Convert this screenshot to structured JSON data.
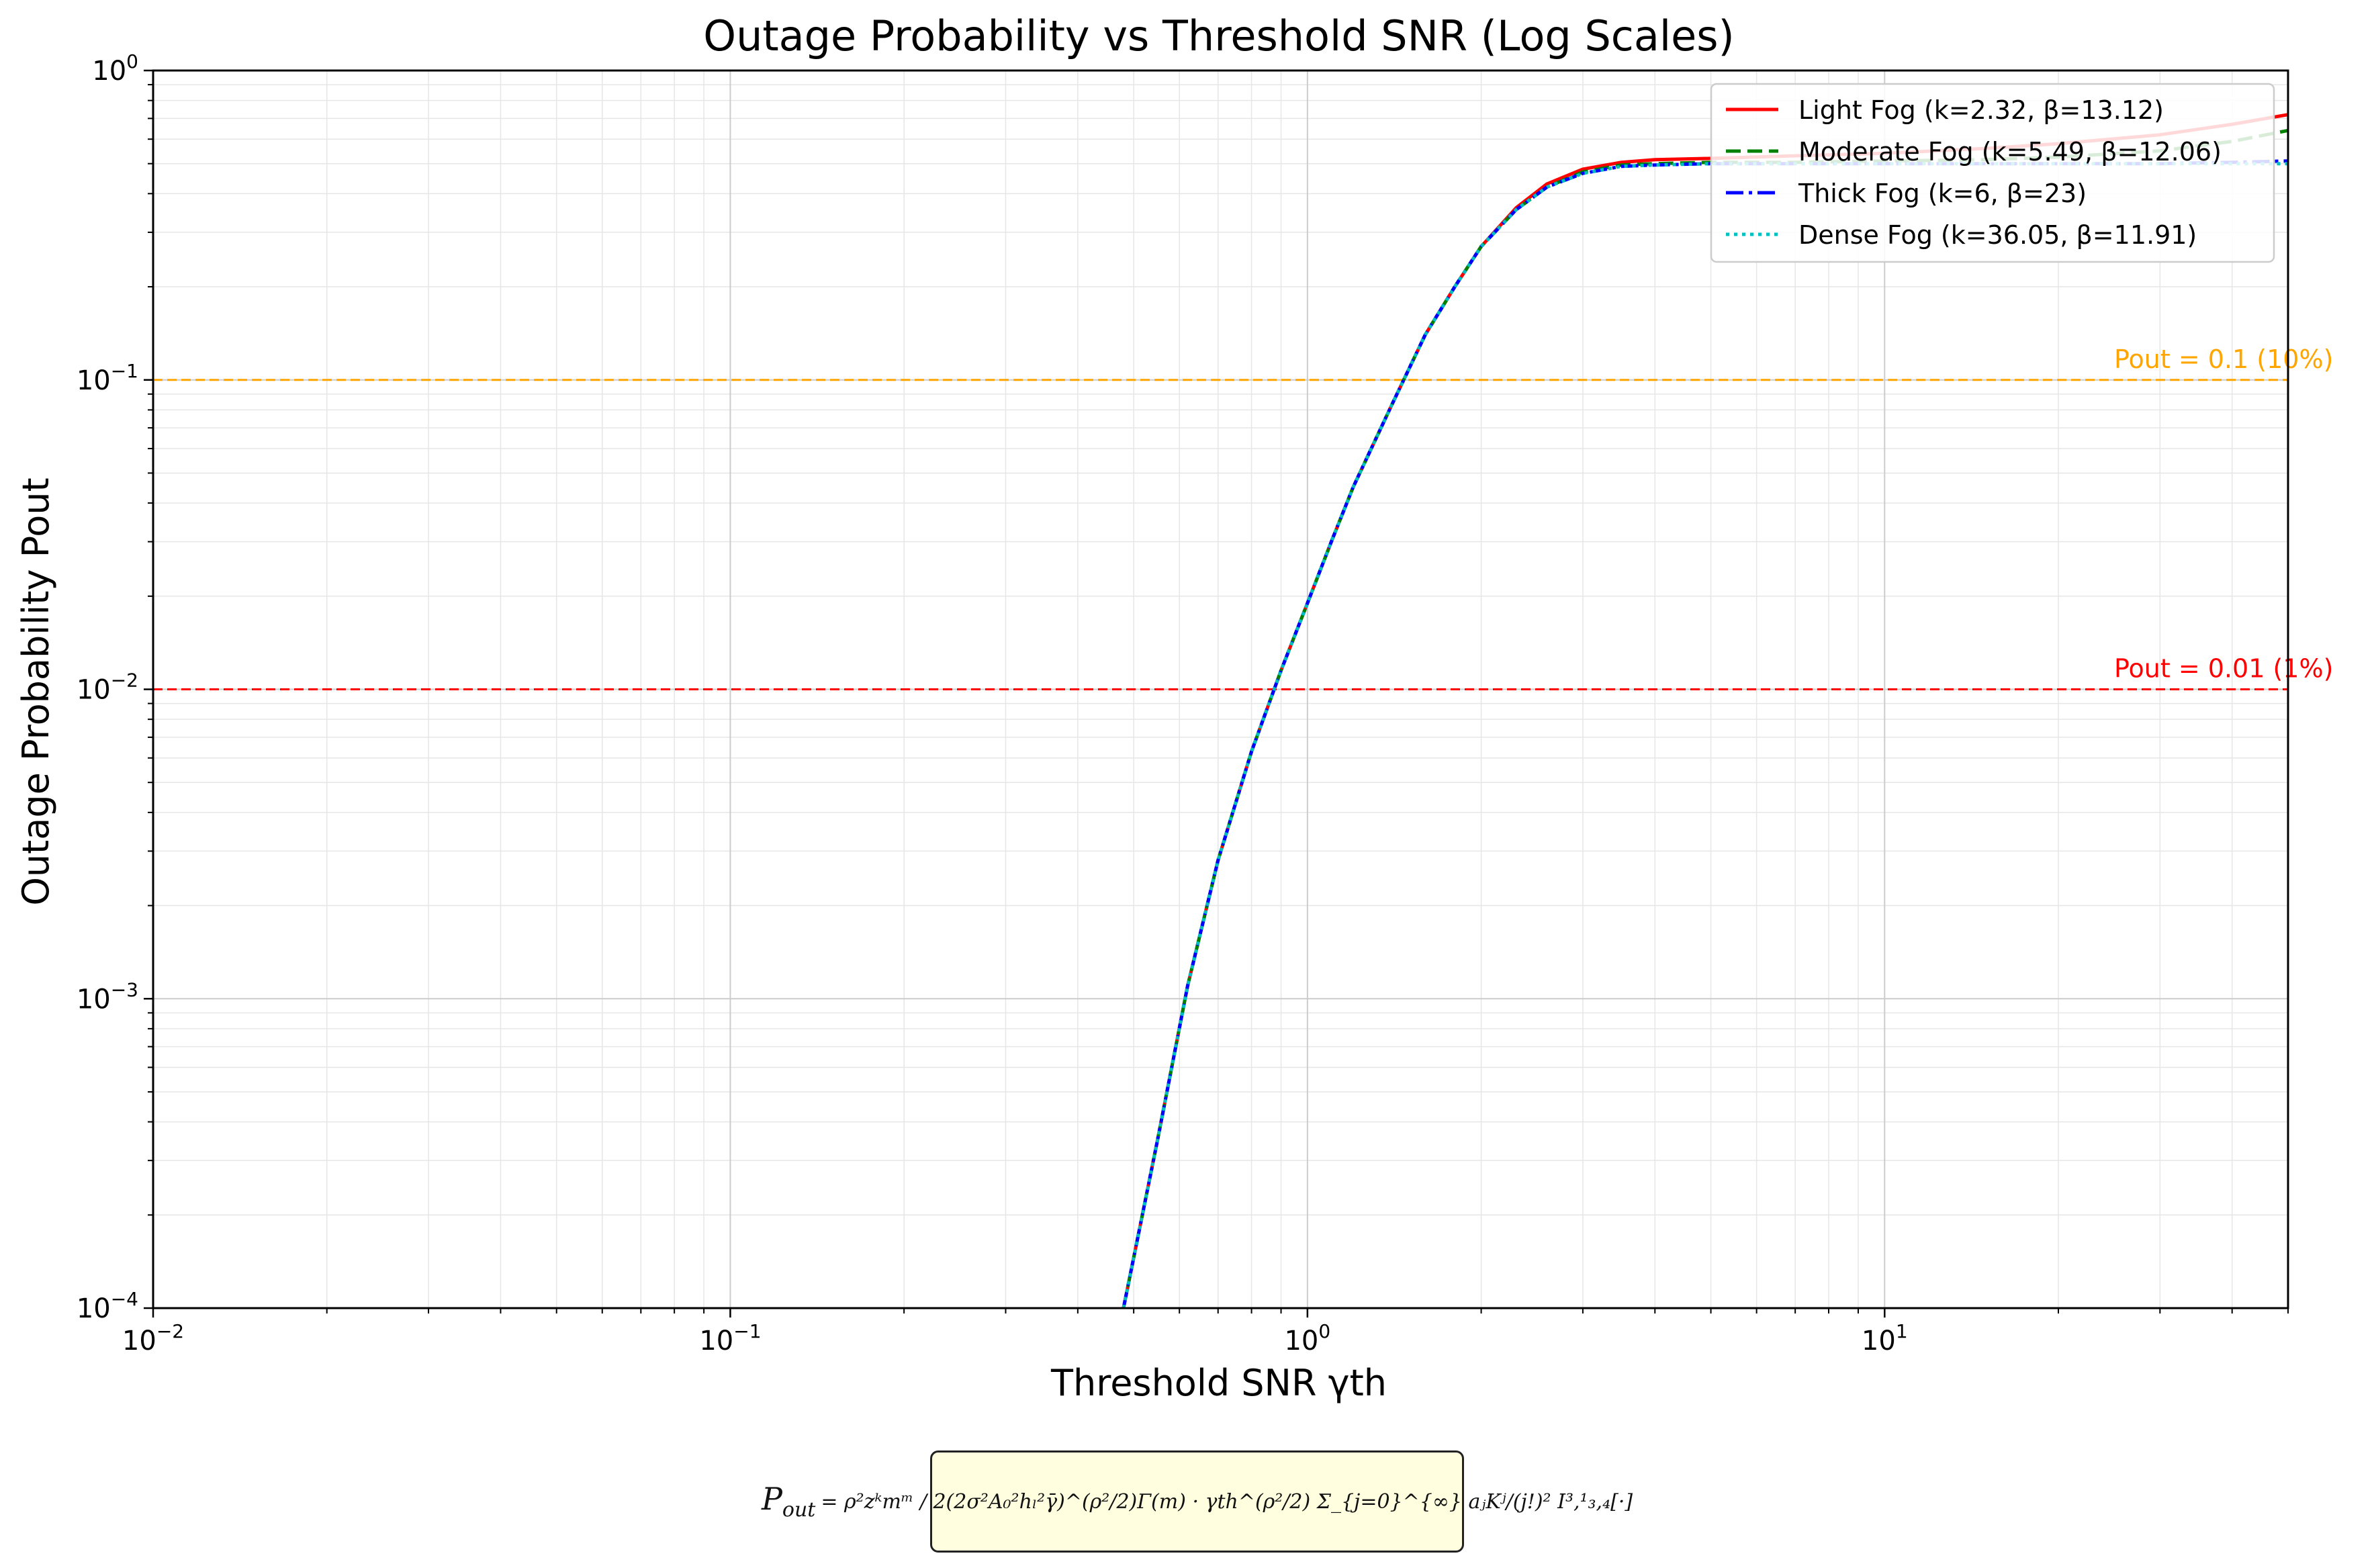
{
  "chart_data": {
    "type": "line",
    "title": "Outage Probability vs Threshold SNR (Log Scales)",
    "xlabel": "Threshold SNR γth",
    "ylabel": "Outage Probability Pout",
    "xscale": "log",
    "yscale": "log",
    "xlim": [
      0.01,
      50
    ],
    "ylim": [
      0.0001,
      1
    ],
    "x_ticks": [
      {
        "value": 0.01,
        "base": "10",
        "exp": "−2"
      },
      {
        "value": 0.1,
        "base": "10",
        "exp": "−1"
      },
      {
        "value": 1,
        "base": "10",
        "exp": "0"
      },
      {
        "value": 10,
        "base": "10",
        "exp": "1"
      }
    ],
    "y_ticks": [
      {
        "value": 0.0001,
        "base": "10",
        "exp": "−4"
      },
      {
        "value": 0.001,
        "base": "10",
        "exp": "−3"
      },
      {
        "value": 0.01,
        "base": "10",
        "exp": "−2"
      },
      {
        "value": 0.1,
        "base": "10",
        "exp": "−1"
      },
      {
        "value": 1,
        "base": "10",
        "exp": "0"
      }
    ],
    "grid": true,
    "legend_position": "top-right",
    "series": [
      {
        "name": "Light Fog (k=2.32, β=13.12)",
        "color": "#ff0000",
        "style": "solid",
        "x": [
          0.48,
          0.55,
          0.62,
          0.7,
          0.8,
          0.9,
          1.0,
          1.1,
          1.2,
          1.4,
          1.6,
          1.8,
          2.0,
          2.3,
          2.6,
          3.0,
          3.5,
          4.0,
          5.0,
          7.0,
          10,
          15,
          20,
          30,
          40,
          50
        ],
        "y": [
          0.0001,
          0.00035,
          0.0011,
          0.0028,
          0.0063,
          0.0115,
          0.019,
          0.03,
          0.045,
          0.083,
          0.14,
          0.2,
          0.27,
          0.36,
          0.43,
          0.48,
          0.505,
          0.515,
          0.52,
          0.53,
          0.54,
          0.56,
          0.58,
          0.62,
          0.67,
          0.72
        ]
      },
      {
        "name": "Moderate Fog (k=5.49, β=12.06)",
        "color": "#008000",
        "style": "dashed",
        "x": [
          0.48,
          0.55,
          0.62,
          0.7,
          0.8,
          0.9,
          1.0,
          1.1,
          1.2,
          1.4,
          1.6,
          1.8,
          2.0,
          2.3,
          2.6,
          3.0,
          3.5,
          4.0,
          5.0,
          7.0,
          10,
          15,
          20,
          30,
          40,
          50
        ],
        "y": [
          0.0001,
          0.00035,
          0.0011,
          0.0028,
          0.0063,
          0.0115,
          0.019,
          0.03,
          0.045,
          0.083,
          0.14,
          0.2,
          0.27,
          0.355,
          0.42,
          0.47,
          0.495,
          0.5,
          0.505,
          0.505,
          0.51,
          0.515,
          0.525,
          0.55,
          0.59,
          0.64
        ]
      },
      {
        "name": "Thick Fog (k=6, β=23)",
        "color": "#0000ff",
        "style": "dashdot",
        "x": [
          0.48,
          0.55,
          0.62,
          0.7,
          0.8,
          0.9,
          1.0,
          1.1,
          1.2,
          1.4,
          1.6,
          1.8,
          2.0,
          2.3,
          2.6,
          3.0,
          3.5,
          4.0,
          5.0,
          7.0,
          10,
          15,
          20,
          30,
          40,
          50
        ],
        "y": [
          0.0001,
          0.00035,
          0.0011,
          0.0028,
          0.0063,
          0.0115,
          0.019,
          0.03,
          0.045,
          0.083,
          0.14,
          0.2,
          0.27,
          0.355,
          0.42,
          0.465,
          0.49,
          0.495,
          0.5,
          0.5,
          0.5,
          0.5,
          0.5,
          0.5,
          0.505,
          0.51
        ]
      },
      {
        "name": "Dense Fog (k=36.05, β=11.91)",
        "color": "#00bfbf",
        "style": "dotted",
        "x": [
          0.48,
          0.55,
          0.62,
          0.7,
          0.8,
          0.9,
          1.0,
          1.1,
          1.2,
          1.4,
          1.6,
          1.8,
          2.0,
          2.3,
          2.6,
          3.0,
          3.5,
          4.0,
          5.0,
          7.0,
          10,
          15,
          20,
          30,
          40,
          50
        ],
        "y": [
          0.0001,
          0.00035,
          0.0011,
          0.0028,
          0.0063,
          0.0115,
          0.019,
          0.03,
          0.045,
          0.083,
          0.14,
          0.2,
          0.27,
          0.355,
          0.42,
          0.465,
          0.49,
          0.495,
          0.5,
          0.5,
          0.5,
          0.5,
          0.5,
          0.5,
          0.5,
          0.5
        ]
      }
    ],
    "reference_lines": [
      {
        "y": 0.1,
        "label": "Pout = 0.1 (10%)",
        "color": "#ffa500"
      },
      {
        "y": 0.01,
        "label": "Pout = 0.01 (1%)",
        "color": "#ff0000"
      }
    ]
  },
  "formula": {
    "lhs": "P",
    "lhs_sub": "out",
    "rhs": "= ρ²zᵏmᵐ / 2(2σ²A₀²hₗ²γ̄)^(ρ²/2)Γ(m) · γth^(ρ²/2) Σ_{j=0}^{∞} aⱼKʲ/(j!)² I³,¹₃,₄[·]"
  }
}
